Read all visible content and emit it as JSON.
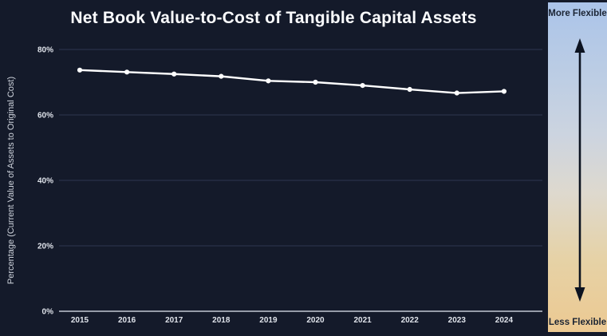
{
  "chart_data": {
    "type": "line",
    "title": "Net Book Value-to-Cost of Tangible Capital Assets",
    "categories": [
      "2015",
      "2016",
      "2017",
      "2018",
      "2019",
      "2020",
      "2021",
      "2022",
      "2023",
      "2024"
    ],
    "values": [
      73.7,
      73.1,
      72.5,
      71.8,
      70.4,
      70.0,
      69.0,
      67.8,
      66.7,
      67.2
    ],
    "xlabel": "",
    "ylabel": "Percentage (Current Value of Assets to Original Cost)",
    "ylim": [
      0,
      80
    ],
    "yticks": [
      0,
      20,
      40,
      60,
      80
    ],
    "ytick_suffix": "%",
    "grid": true,
    "legend": "none",
    "line_color": "#ffffff",
    "grid_color": "#2e3650",
    "axis_color": "#c2c7d2",
    "background": "#141a2a"
  },
  "flexibility_scale": {
    "more_label": "More Flexible",
    "less_label": "Less Flexible",
    "arrow_color": "#0c1320",
    "text_color": "#1b2433",
    "gradient_top": "#abc4e9",
    "gradient_bottom": "#ecc992"
  }
}
